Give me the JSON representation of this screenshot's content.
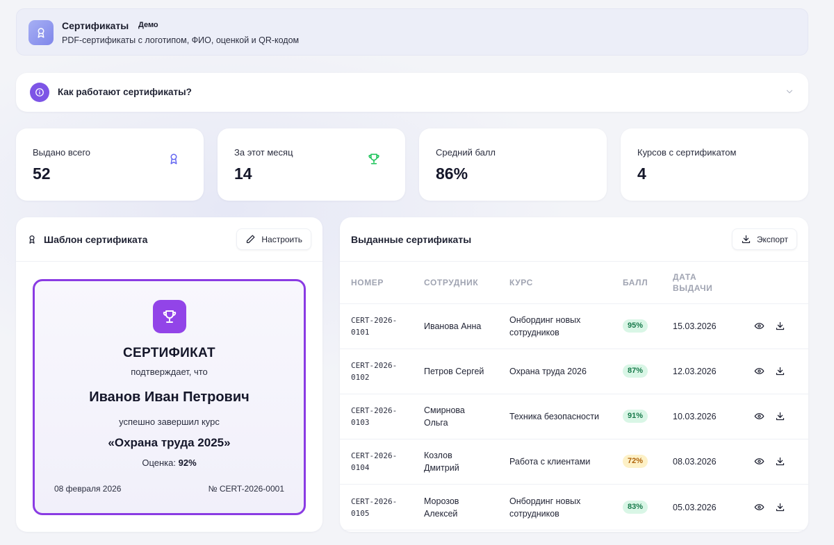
{
  "header": {
    "title": "Сертификаты",
    "badge": "Демо",
    "subtitle": "PDF-сертификаты с логотипом, ФИО, оценкой и QR-кодом",
    "icon": "award-icon"
  },
  "accordion": {
    "label": "Как работают сертификаты?",
    "icon": "info-icon"
  },
  "stats": [
    {
      "label": "Выдано всего",
      "value": "52",
      "icon": "award-icon",
      "color": "#6366f1"
    },
    {
      "label": "За этот месяц",
      "value": "14",
      "icon": "trophy-icon",
      "color": "#22c55e"
    },
    {
      "label": "Средний балл",
      "value": "86%"
    },
    {
      "label": "Курсов с сертификатом",
      "value": "4"
    }
  ],
  "template": {
    "title": "Шаблон сертификата",
    "configure_label": "Настроить",
    "certificate": {
      "title": "СЕРТИФИКАТ",
      "confirms": "подтверждает, что",
      "name": "Иванов Иван Петрович",
      "completed": "успешно завершил курс",
      "course": "«Охрана труда 2025»",
      "score_label": "Оценка:",
      "score_value": "92%",
      "date": "08 февраля 2026",
      "number": "№ CERT-2026-0001"
    },
    "accent": "#8a3be3"
  },
  "issued": {
    "title": "Выданные сертификаты",
    "export_label": "Экспорт",
    "columns": {
      "number": "НОМЕР",
      "employee": "СОТРУДНИК",
      "course": "КУРС",
      "score": "БАЛЛ",
      "date_line1": "ДАТА",
      "date_line2": "ВЫДАЧИ"
    },
    "rows": [
      {
        "num1": "CERT-2026-",
        "num2": "0101",
        "emp1": "Иванова Анна",
        "emp2": "",
        "course1": "Онбординг новых",
        "course2": "сотрудников",
        "score": "95%",
        "level": "green",
        "date": "15.03.2026"
      },
      {
        "num1": "CERT-2026-",
        "num2": "0102",
        "emp1": "Петров Сергей",
        "emp2": "",
        "course1": "Охрана труда 2026",
        "course2": "",
        "score": "87%",
        "level": "green",
        "date": "12.03.2026"
      },
      {
        "num1": "CERT-2026-",
        "num2": "0103",
        "emp1": "Смирнова",
        "emp2": "Ольга",
        "course1": "Техника безопасности",
        "course2": "",
        "score": "91%",
        "level": "green",
        "date": "10.03.2026"
      },
      {
        "num1": "CERT-2026-",
        "num2": "0104",
        "emp1": "Козлов",
        "emp2": "Дмитрий",
        "course1": "Работа с клиентами",
        "course2": "",
        "score": "72%",
        "level": "yellow",
        "date": "08.03.2026"
      },
      {
        "num1": "CERT-2026-",
        "num2": "0105",
        "emp1": "Морозов",
        "emp2": "Алексей",
        "course1": "Онбординг новых",
        "course2": "сотрудников",
        "score": "83%",
        "level": "green",
        "date": "05.03.2026"
      }
    ],
    "row_actions": [
      "eye-icon",
      "download-icon"
    ]
  }
}
